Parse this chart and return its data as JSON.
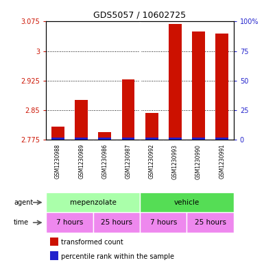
{
  "title": "GDS5057 / 10602725",
  "samples": [
    "GSM1230988",
    "GSM1230989",
    "GSM1230986",
    "GSM1230987",
    "GSM1230992",
    "GSM1230993",
    "GSM1230990",
    "GSM1230991"
  ],
  "red_values": [
    2.808,
    2.876,
    2.795,
    2.928,
    2.844,
    3.068,
    3.05,
    3.045
  ],
  "blue_pct": [
    3,
    4,
    2,
    3,
    3,
    5,
    4,
    4
  ],
  "ymin": 2.775,
  "ymax": 3.075,
  "yticks": [
    2.775,
    2.85,
    2.925,
    3.0,
    3.075
  ],
  "ytick_labels": [
    "2.775",
    "2.85",
    "2.925",
    "3",
    "3.075"
  ],
  "y2ticks_pct": [
    0,
    25,
    50,
    75,
    100
  ],
  "y2tick_labels": [
    "0",
    "25",
    "50",
    "75",
    "100%"
  ],
  "bar_width": 0.55,
  "agent_color_light": "#aaffaa",
  "agent_color_bright": "#55dd55",
  "time_color_pink": "#ee88ee",
  "bar_color_red": "#cc1100",
  "bar_color_blue": "#2222cc",
  "bg_color": "#cccccc",
  "plot_bg": "#ffffff",
  "left_axis_color": "#cc1100",
  "right_axis_color": "#2222cc",
  "group_sep_idx": 3.5
}
